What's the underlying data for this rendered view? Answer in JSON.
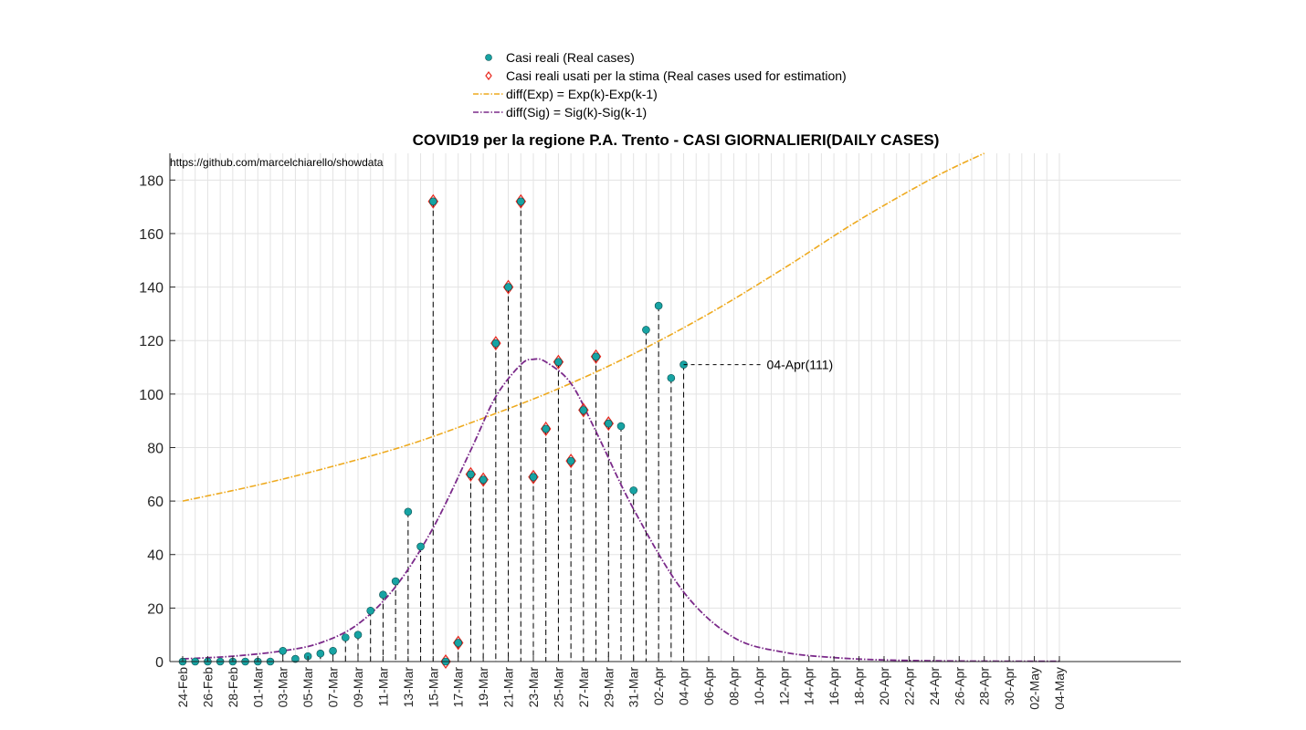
{
  "chart_data": {
    "type": "scatter",
    "title": "COVID19 per la regione P.A. Trento - CASI GIORNALIERI(DAILY CASES)",
    "watermark": "https://github.com/marcelchiarello/showdata",
    "annotation": "04-Apr(111)",
    "ylim": [
      0,
      190
    ],
    "yticks": [
      0,
      20,
      40,
      60,
      80,
      100,
      120,
      140,
      160,
      180
    ],
    "grid": true,
    "legend_position": "top-center",
    "x_labels": [
      "24-Feb",
      "26-Feb",
      "28-Feb",
      "01-Mar",
      "03-Mar",
      "05-Mar",
      "07-Mar",
      "09-Mar",
      "11-Mar",
      "13-Mar",
      "15-Mar",
      "17-Mar",
      "19-Mar",
      "21-Mar",
      "23-Mar",
      "25-Mar",
      "27-Mar",
      "29-Mar",
      "31-Mar",
      "02-Apr",
      "04-Apr",
      "06-Apr",
      "08-Apr",
      "10-Apr",
      "12-Apr",
      "14-Apr",
      "16-Apr",
      "18-Apr",
      "20-Apr",
      "22-Apr",
      "24-Apr",
      "26-Apr",
      "28-Apr",
      "30-Apr",
      "02-May",
      "04-May"
    ],
    "legend": [
      {
        "label": "Casi reali (Real cases)",
        "kind": "dot"
      },
      {
        "label": "Casi reali usati per la stima (Real cases used for estimation)",
        "kind": "diamond"
      },
      {
        "label": "diff(Exp) = Exp(k)-Exp(k-1)",
        "kind": "exp"
      },
      {
        "label": "diff(Sig) = Sig(k)-Sig(k-1)",
        "kind": "sig"
      }
    ],
    "series": [
      {
        "name": "Casi reali (Real cases)",
        "x": [
          "24-Feb",
          "25-Feb",
          "26-Feb",
          "27-Feb",
          "28-Feb",
          "29-Feb",
          "01-Mar",
          "02-Mar",
          "03-Mar",
          "04-Mar",
          "05-Mar",
          "06-Mar",
          "07-Mar",
          "08-Mar",
          "09-Mar",
          "10-Mar",
          "11-Mar",
          "12-Mar",
          "13-Mar",
          "14-Mar",
          "15-Mar",
          "16-Mar",
          "17-Mar",
          "18-Mar",
          "19-Mar",
          "20-Mar",
          "21-Mar",
          "22-Mar",
          "23-Mar",
          "24-Mar",
          "25-Mar",
          "26-Mar",
          "27-Mar",
          "28-Mar",
          "29-Mar",
          "30-Mar",
          "31-Mar",
          "01-Apr",
          "02-Apr",
          "03-Apr",
          "04-Apr"
        ],
        "values": [
          0,
          0,
          0,
          0,
          0,
          0,
          0,
          0,
          4,
          1,
          2,
          3,
          4,
          9,
          10,
          19,
          25,
          30,
          56,
          43,
          172,
          0,
          7,
          70,
          68,
          119,
          140,
          172,
          69,
          87,
          112,
          75,
          94,
          114,
          89,
          88,
          64,
          124,
          133,
          106,
          111
        ]
      },
      {
        "name": "Casi reali usati per la stima (Real cases used for estimation)",
        "x": [
          "15-Mar",
          "16-Mar",
          "17-Mar",
          "18-Mar",
          "19-Mar",
          "20-Mar",
          "21-Mar",
          "22-Mar",
          "23-Mar",
          "24-Mar",
          "25-Mar",
          "26-Mar",
          "27-Mar",
          "28-Mar",
          "29-Mar"
        ],
        "values": [
          172,
          0,
          7,
          70,
          68,
          119,
          140,
          172,
          69,
          87,
          112,
          75,
          94,
          114,
          89
        ]
      },
      {
        "name": "diff(Exp) = Exp(k)-Exp(k-1)",
        "x": [
          "24-Feb",
          "01-Mar",
          "07-Mar",
          "13-Mar",
          "19-Mar",
          "25-Mar",
          "31-Mar",
          "06-Apr",
          "12-Apr",
          "18-Apr",
          "24-Apr",
          "28-Apr"
        ],
        "values": [
          60,
          66,
          73,
          81,
          91,
          102,
          115,
          130,
          147,
          165,
          181,
          190
        ]
      },
      {
        "name": "diff(Sig) = Sig(k)-Sig(k-1)",
        "x": [
          "24-Feb",
          "28-Feb",
          "03-Mar",
          "06-Mar",
          "09-Mar",
          "12-Mar",
          "15-Mar",
          "18-Mar",
          "20-Mar",
          "22-Mar",
          "23-Mar",
          "24-Mar",
          "26-Mar",
          "28-Mar",
          "31-Mar",
          "04-Apr",
          "08-Apr",
          "12-Apr",
          "16-Apr",
          "20-Apr",
          "26-Apr",
          "04-May"
        ],
        "values": [
          1,
          2,
          4,
          7,
          14,
          28,
          50,
          79,
          99,
          111,
          113,
          112,
          104,
          86,
          57,
          26,
          9,
          3.5,
          1.5,
          0.6,
          0.2,
          0.1
        ]
      }
    ]
  },
  "colors": {
    "real": "#17a3a3",
    "real_edge": "#0a4d4d",
    "estimation": "#e8281e",
    "exp": "#eeaa1f",
    "sig": "#7b2a8a",
    "grid": "#e3e3e3",
    "axis": "#262626"
  }
}
